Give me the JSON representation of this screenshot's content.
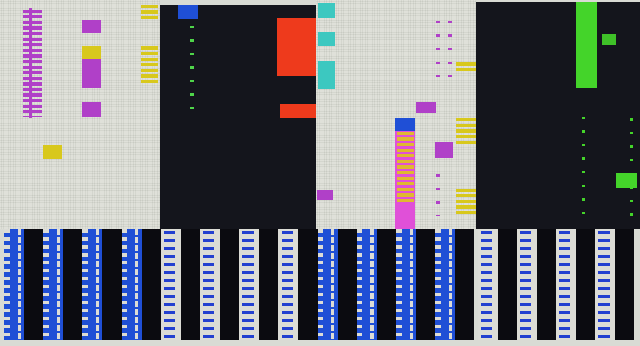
{
  "screen": {
    "type": "glitched-game-display",
    "palette": {
      "light_panel": "#dfe0d9",
      "dark_panel": "#14151c",
      "magenta": "#b040c8",
      "yellow": "#d8c81c",
      "red": "#ee3a1c",
      "cyan": "#3cc8c0",
      "blue": "#1f4fd6",
      "green": "#44d42a",
      "pink": "#e050d8"
    },
    "bottom_columns": [
      "blue",
      "blue",
      "blue",
      "blue",
      "white",
      "white",
      "white",
      "white",
      "blue",
      "blue",
      "blue",
      "blue",
      "white",
      "white",
      "white",
      "white"
    ]
  }
}
